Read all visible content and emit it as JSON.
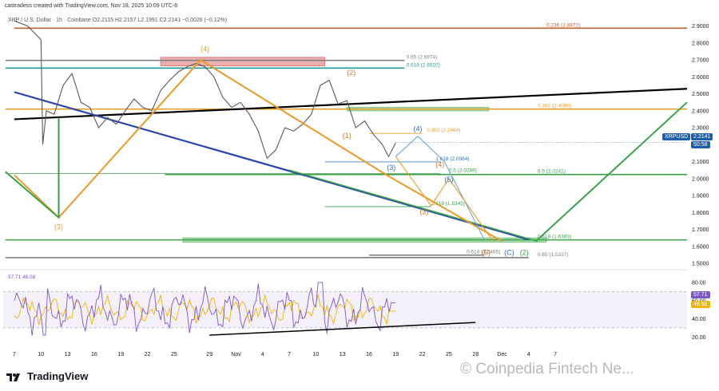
{
  "header": {
    "credit": "castradess created with TradingView.com, Nov 18, 2025 10:09 UTC-6"
  },
  "symbol_line": "XRP / U.S. Dollar · 1h · Coinbase  O2.2115 H2.2157 L2.1991 C2.2141 −0.0026 (−0.12%)",
  "price_tag": {
    "symbol": "XRPUSD",
    "price": "2.2141",
    "countdown": "50:58",
    "color": "#1e5fa8"
  },
  "rsi_tags": [
    {
      "label": "57.71",
      "color": "#7e57c2"
    },
    {
      "label": "48.58",
      "color": "#f2b600"
    }
  ],
  "footer": {
    "brand": "TradingView",
    "watermark": "© Coinpedia Fintech Ne..."
  },
  "chart_data": {
    "type": "line",
    "symbol": "XRPUSD",
    "ylim": [
      1.5,
      2.95
    ],
    "y_ticks": [
      "2.9000",
      "2.8000",
      "2.7000",
      "2.6000",
      "2.5000",
      "2.4000",
      "2.3000",
      "2.2000",
      "2.1000",
      "2.0000",
      "1.9000",
      "1.8000",
      "1.7000",
      "1.6000",
      "1.5000"
    ],
    "x_ticks": [
      {
        "label": "7",
        "day": 0
      },
      {
        "label": "10",
        "day": 3
      },
      {
        "label": "13",
        "day": 6
      },
      {
        "label": "16",
        "day": 9
      },
      {
        "label": "19",
        "day": 12
      },
      {
        "label": "22",
        "day": 15
      },
      {
        "label": "25",
        "day": 18
      },
      {
        "label": "29",
        "day": 22
      },
      {
        "label": "Nov",
        "day": 25
      },
      {
        "label": "4",
        "day": 28
      },
      {
        "label": "7",
        "day": 31
      },
      {
        "label": "10",
        "day": 34
      },
      {
        "label": "13",
        "day": 37
      },
      {
        "label": "16",
        "day": 40
      },
      {
        "label": "19",
        "day": 43
      },
      {
        "label": "22",
        "day": 46
      },
      {
        "label": "25",
        "day": 49
      },
      {
        "label": "28",
        "day": 52
      },
      {
        "label": "Dec",
        "day": 55
      },
      {
        "label": "4",
        "day": 58
      },
      {
        "label": "7",
        "day": 61
      }
    ],
    "price_series": {
      "name": "XRPUSD",
      "points": [
        [
          0,
          2.93
        ],
        [
          1.5,
          2.9
        ],
        [
          3,
          2.82
        ],
        [
          3.2,
          2.2
        ],
        [
          3.6,
          2.4
        ],
        [
          4.5,
          2.38
        ],
        [
          5.5,
          2.55
        ],
        [
          6.5,
          2.62
        ],
        [
          7.5,
          2.45
        ],
        [
          8.5,
          2.42
        ],
        [
          9.5,
          2.3
        ],
        [
          10.5,
          2.36
        ],
        [
          11.5,
          2.32
        ],
        [
          12.5,
          2.4
        ],
        [
          13.5,
          2.47
        ],
        [
          14.5,
          2.42
        ],
        [
          15.5,
          2.4
        ],
        [
          16.5,
          2.52
        ],
        [
          17.5,
          2.58
        ],
        [
          18.5,
          2.63
        ],
        [
          19.5,
          2.66
        ],
        [
          20.5,
          2.68
        ],
        [
          21.5,
          2.66
        ],
        [
          22.5,
          2.6
        ],
        [
          23.5,
          2.48
        ],
        [
          24.5,
          2.42
        ],
        [
          25.5,
          2.45
        ],
        [
          26.5,
          2.38
        ],
        [
          27.5,
          2.28
        ],
        [
          28.5,
          2.12
        ],
        [
          29.5,
          2.17
        ],
        [
          30.5,
          2.3
        ],
        [
          31.5,
          2.28
        ],
        [
          32.5,
          2.32
        ],
        [
          33.5,
          2.38
        ],
        [
          34.5,
          2.55
        ],
        [
          35.5,
          2.58
        ],
        [
          36.5,
          2.44
        ],
        [
          37.5,
          2.46
        ],
        [
          38.5,
          2.3
        ],
        [
          39.5,
          2.34
        ],
        [
          40.5,
          2.26
        ],
        [
          41.5,
          2.2
        ],
        [
          42.2,
          2.13
        ],
        [
          43.0,
          2.21
        ]
      ]
    },
    "price_last": 2.2141,
    "horizontal_levels": [
      {
        "label": "0.236 (2.8872)",
        "value": 2.8872,
        "color": "#c0622f"
      },
      {
        "label": "0.65 (2.6974)",
        "value": 2.6974,
        "color": "#808080"
      },
      {
        "label": "0.618 (2.6520)",
        "value": 2.652,
        "color": "#1e9c94"
      },
      {
        "label": "0.382 (2.4099)",
        "value": 2.4099,
        "color": "#e3a02b"
      },
      {
        "label": "0.382 (2.2664)",
        "value": 2.2664,
        "color": "#e3a02b"
      },
      {
        "label": "1.618 (2.0984)",
        "value": 2.0984,
        "color": "#2f6fb5"
      },
      {
        "label": "0.5 (2.0289)",
        "value": 2.0289,
        "color": "#3aa14a"
      },
      {
        "label": "0.5 (2.0241)",
        "value": 2.0241,
        "color": "#3aa14a"
      },
      {
        "label": "2.618 (1.8345)",
        "value": 1.8345,
        "color": "#3aa14a"
      },
      {
        "label": "0.618 (1.6383)",
        "value": 1.6383,
        "color": "#3aa14a"
      },
      {
        "label": "0.65 (1.5337)",
        "value": 1.5337,
        "color": "#808080"
      },
      {
        "label": "0.618 (1.5485)",
        "value": 1.5485,
        "color": "#808080"
      }
    ],
    "zones": [
      {
        "name": "resistance",
        "x": [
          16.5,
          35.0
        ],
        "y": [
          2.665,
          2.715
        ],
        "color": "#e07a7a"
      },
      {
        "name": "supply",
        "x": [
          37.5,
          53.5
        ],
        "y": [
          2.4,
          2.42
        ],
        "color": "#7bc47f"
      },
      {
        "name": "support",
        "x": [
          19.0,
          60.0
        ],
        "y": [
          1.625,
          1.65
        ],
        "color": "#7bc47f"
      }
    ],
    "trendlines": [
      {
        "name": "upper-channel",
        "points": [
          [
            0,
            2.35
          ],
          [
            78,
            2.53
          ]
        ],
        "color": "#000000"
      },
      {
        "name": "lower-channel-blue",
        "points": [
          [
            0,
            2.51
          ],
          [
            58,
            1.64
          ]
        ],
        "color": "#2b48a8"
      },
      {
        "name": "lower-channel-green",
        "points": [
          [
            31,
            2.05
          ],
          [
            59,
            1.63
          ]
        ],
        "color": "#3aa14a"
      }
    ],
    "wave_paths": [
      {
        "name": "orange-wave",
        "points": [
          [
            0,
            2.02
          ],
          [
            5,
            1.77
          ],
          [
            21,
            2.7
          ],
          [
            42,
            2.02
          ],
          [
            55,
            1.63
          ]
        ],
        "color": "#e89a2a"
      },
      {
        "name": "green-projection",
        "points": [
          [
            -1,
            2.04
          ],
          [
            5,
            1.77
          ],
          [
            5,
            2.36
          ]
        ],
        "color": "#3aa14a"
      },
      {
        "name": "green-future",
        "points": [
          [
            59,
            1.64
          ],
          [
            78,
            2.45
          ]
        ],
        "color": "#3aa14a"
      },
      {
        "name": "blue-projection",
        "points": [
          [
            43,
            2.13
          ],
          [
            45.5,
            2.25
          ],
          [
            48.5,
            2.1
          ],
          [
            53,
            1.64
          ]
        ],
        "color": "#6aa6d8"
      },
      {
        "name": "orange-projection",
        "points": [
          [
            43,
            2.13
          ],
          [
            47,
            1.84
          ],
          [
            49,
            2.0
          ],
          [
            54,
            1.63
          ]
        ],
        "color": "#e89a2a"
      }
    ],
    "wave_labels": [
      {
        "text": "(4)",
        "x": 21.5,
        "y": 2.75,
        "color": "#e89a2a"
      },
      {
        "text": "(3)",
        "x": 5,
        "y": 1.7,
        "color": "#e89a2a"
      },
      {
        "text": "(2)",
        "x": 38,
        "y": 2.61,
        "color": "#c07a2a"
      },
      {
        "text": "(1)",
        "x": 37.5,
        "y": 2.24,
        "color": "#c07a2a"
      },
      {
        "text": "(4)",
        "x": 45.5,
        "y": 2.28,
        "color": "#2f6fb5"
      },
      {
        "text": "(3)",
        "x": 42.5,
        "y": 2.05,
        "color": "#2f6fb5"
      },
      {
        "text": "(4)",
        "x": 48,
        "y": 2.07,
        "color": "#c07a2a"
      },
      {
        "text": "(5)",
        "x": 49,
        "y": 1.98,
        "color": "#2f6fb5"
      },
      {
        "text": "(3)",
        "x": 46.2,
        "y": 1.79,
        "color": "#c07a2a"
      },
      {
        "text": "(5)",
        "x": 53.2,
        "y": 1.55,
        "color": "#c07a2a"
      },
      {
        "text": "(C)",
        "x": 55.8,
        "y": 1.55,
        "color": "#2f6fb5"
      },
      {
        "text": "(2)",
        "x": 57.5,
        "y": 1.55,
        "color": "#3aa14a"
      }
    ],
    "rsi": {
      "ylim": [
        15,
        88
      ],
      "y_ticks": [
        "80.00",
        "60.00",
        "40.00",
        "20.00"
      ],
      "rsi_series": {
        "name": "RSI",
        "last": 57.71,
        "color": "#7e57c2"
      },
      "signal_series": {
        "name": "MA",
        "last": 48.58,
        "color": "#f2b600"
      },
      "header_label": "57.71  48.58",
      "band": [
        30,
        70
      ],
      "trendline": {
        "points": [
          [
            22,
            22
          ],
          [
            52,
            36
          ]
        ],
        "color": "#000000"
      }
    }
  }
}
